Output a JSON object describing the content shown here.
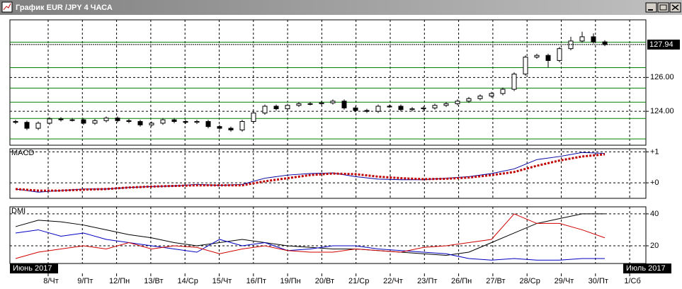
{
  "window": {
    "title": "График EUR /JPY  4 ЧАСА"
  },
  "x_axis": {
    "labels": [
      "8/Чт",
      "9/Пт",
      "12/Пн",
      "13/Вт",
      "14/Ср",
      "15/Чт",
      "16/Пт",
      "19/Пн",
      "20/Вт",
      "21/Ср",
      "22/Чт",
      "23/Пт",
      "26/Пн",
      "27/Вт",
      "28/Ср",
      "29/Чт",
      "30/Пт",
      "1/Сб"
    ],
    "month_labels": [
      "Июнь 2017",
      "Июль 2017"
    ]
  },
  "chart_data": [
    {
      "type": "candlestick",
      "up_color": "#ffffff",
      "down_color": "#000000",
      "level_color": "#008000",
      "open": [
        123.4,
        123.35,
        123.0,
        123.3,
        123.55,
        123.5,
        123.5,
        123.3,
        123.45,
        123.6,
        123.45,
        123.4,
        123.2,
        123.3,
        123.5,
        123.4,
        123.35,
        123.4,
        123.1,
        123.0,
        122.9,
        123.4,
        123.9,
        124.3,
        124.15,
        124.35,
        124.45,
        124.45,
        124.5,
        124.6,
        124.2,
        124.05,
        124.0,
        124.3,
        124.3,
        124.1,
        124.15,
        124.2,
        124.35,
        124.45,
        124.6,
        124.75,
        124.9,
        125.05,
        125.3,
        126.2,
        127.2,
        127.3,
        127.0,
        127.7,
        128.15,
        128.4,
        128.1
      ],
      "high": [
        123.5,
        123.45,
        123.4,
        123.65,
        123.65,
        123.6,
        123.6,
        123.55,
        123.7,
        123.7,
        123.55,
        123.5,
        123.4,
        123.6,
        123.6,
        123.5,
        123.5,
        123.5,
        123.2,
        123.1,
        123.5,
        124.0,
        124.4,
        124.4,
        124.45,
        124.55,
        124.55,
        124.6,
        124.7,
        124.7,
        124.3,
        124.15,
        124.4,
        124.4,
        124.4,
        124.25,
        124.3,
        124.45,
        124.55,
        124.7,
        124.85,
        125.0,
        125.15,
        125.4,
        126.3,
        127.3,
        127.4,
        127.4,
        127.8,
        128.4,
        128.7,
        128.6,
        128.2
      ],
      "low": [
        123.25,
        122.9,
        122.9,
        123.2,
        123.4,
        123.4,
        123.2,
        123.2,
        123.35,
        123.35,
        123.3,
        123.1,
        123.1,
        123.2,
        123.3,
        123.25,
        123.25,
        123.0,
        122.9,
        122.8,
        122.8,
        123.3,
        123.8,
        124.05,
        124.05,
        124.25,
        124.35,
        124.35,
        124.4,
        124.1,
        123.95,
        123.9,
        123.9,
        124.2,
        124.0,
        124.0,
        124.05,
        124.1,
        124.25,
        124.35,
        124.5,
        124.65,
        124.8,
        124.95,
        125.2,
        126.1,
        127.1,
        126.6,
        126.9,
        127.6,
        128.05,
        128.0,
        127.85
      ],
      "close": [
        123.35,
        123.0,
        123.3,
        123.55,
        123.5,
        123.5,
        123.3,
        123.45,
        123.6,
        123.45,
        123.4,
        123.2,
        123.3,
        123.5,
        123.4,
        123.35,
        123.4,
        123.1,
        123.0,
        122.9,
        123.4,
        123.9,
        124.3,
        124.15,
        124.35,
        124.45,
        124.45,
        124.5,
        124.6,
        124.2,
        124.05,
        124.0,
        124.3,
        124.3,
        124.1,
        124.15,
        124.2,
        124.35,
        124.45,
        124.6,
        124.75,
        124.9,
        125.05,
        125.3,
        126.2,
        127.2,
        127.3,
        127.0,
        127.7,
        128.15,
        128.4,
        128.1,
        127.94
      ],
      "last_price": 127.94,
      "levels": [
        128.08,
        126.58,
        125.37,
        124.54,
        123.58,
        122.37
      ],
      "ylim": [
        122,
        129.4
      ],
      "yticks": [
        {
          "value": 124,
          "label": "124.00"
        },
        {
          "value": 126,
          "label": "126.00"
        }
      ],
      "grid": true
    },
    {
      "type": "line",
      "title": "MACD",
      "ylim": [
        -0.5,
        1.1
      ],
      "yticks": [
        {
          "value": 1,
          "label": "+1"
        },
        {
          "value": 0,
          "label": "+0"
        }
      ],
      "series": [
        {
          "color": "#0000a0",
          "dashed": false,
          "values": [
            -0.2,
            -0.3,
            -0.25,
            -0.2,
            -0.2,
            -0.15,
            -0.12,
            -0.1,
            -0.05,
            -0.08,
            -0.05,
            0.15,
            0.25,
            0.3,
            0.32,
            0.2,
            0.12,
            0.1,
            0.1,
            0.15,
            0.2,
            0.3,
            0.45,
            0.75,
            0.85,
            0.98,
            0.95
          ]
        },
        {
          "color": "#c00000",
          "dashed": true,
          "values": [
            -0.2,
            -0.25,
            -0.25,
            -0.22,
            -0.2,
            -0.15,
            -0.12,
            -0.1,
            -0.08,
            -0.08,
            -0.08,
            0.05,
            0.15,
            0.25,
            0.3,
            0.28,
            0.2,
            0.15,
            0.12,
            0.13,
            0.17,
            0.25,
            0.35,
            0.55,
            0.72,
            0.85,
            0.92
          ]
        }
      ]
    },
    {
      "type": "line",
      "title": "DMI",
      "ylim": [
        8.9,
        44.4
      ],
      "yticks": [
        40,
        20
      ],
      "series": [
        {
          "color": "#000000",
          "dashed": false,
          "values": [
            32,
            36,
            35,
            33,
            30,
            27,
            25,
            22,
            20,
            22,
            24,
            22,
            20,
            19,
            18,
            18,
            17,
            16,
            15,
            14,
            16,
            22,
            28,
            34,
            37,
            40,
            40
          ]
        },
        {
          "color": "#0000c0",
          "dashed": false,
          "values": [
            28,
            30,
            26,
            28,
            24,
            22,
            20,
            18,
            16,
            24,
            20,
            22,
            17,
            18,
            20,
            20,
            18,
            17,
            16,
            15,
            12,
            11,
            12,
            11,
            11,
            12,
            12
          ]
        },
        {
          "color": "#d00000",
          "dashed": false,
          "values": [
            12,
            16,
            18,
            20,
            18,
            22,
            18,
            20,
            19,
            15,
            18,
            20,
            17,
            16,
            16,
            18,
            17,
            16,
            19,
            20,
            22,
            24,
            40,
            34,
            34,
            30,
            25
          ]
        }
      ]
    }
  ]
}
